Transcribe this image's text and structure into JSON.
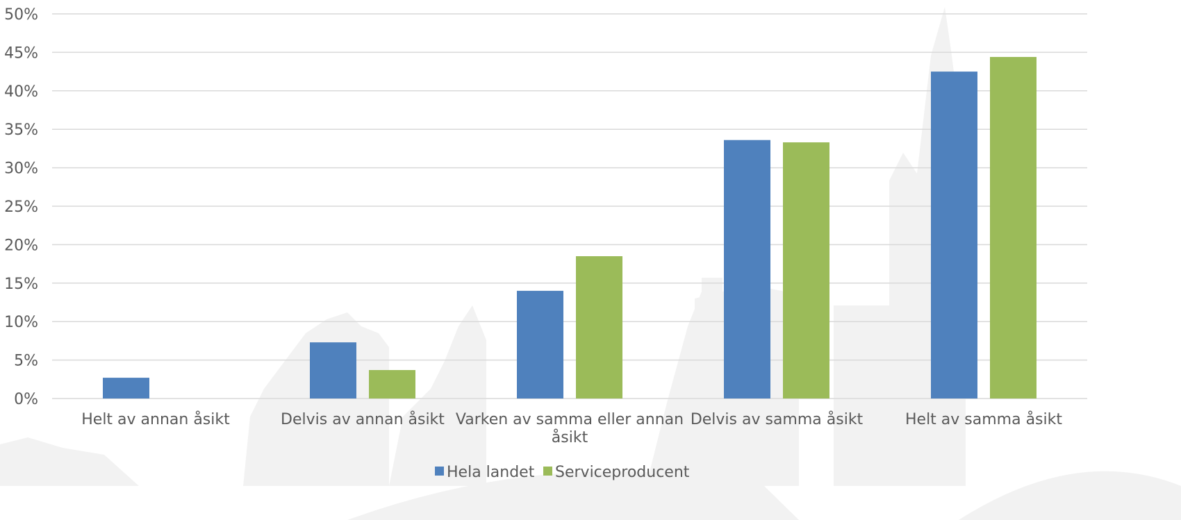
{
  "chart_data": {
    "type": "bar",
    "categories": [
      [
        "Helt av annan åsikt"
      ],
      [
        "Delvis av annan åsikt"
      ],
      [
        "Varken av samma eller annan",
        "åsikt"
      ],
      [
        "Delvis av samma åsikt"
      ],
      [
        "Helt av samma åsikt"
      ]
    ],
    "series": [
      {
        "name": "Hela landet",
        "values": [
          2.7,
          7.3,
          14.0,
          33.6,
          42.5
        ]
      },
      {
        "name": "Serviceproducent",
        "values": [
          0,
          3.7,
          18.5,
          33.3,
          44.4
        ]
      }
    ],
    "ylim": [
      0,
      50
    ],
    "yticks": [
      "0%",
      "5%",
      "10%",
      "15%",
      "20%",
      "25%",
      "30%",
      "35%",
      "40%",
      "45%",
      "50%"
    ],
    "grid": true,
    "legend_placement": "bottom-center",
    "colors": {
      "Hela landet": "#4f81bd",
      "Serviceproducent": "#9bbb59"
    }
  }
}
